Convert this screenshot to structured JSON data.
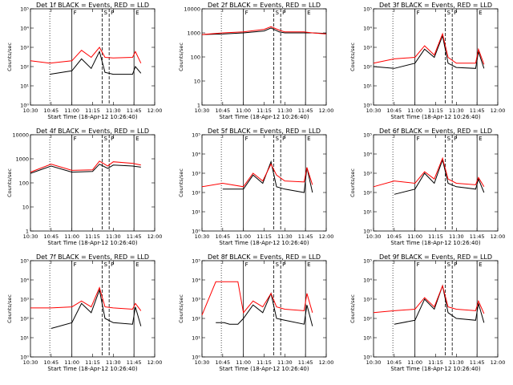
{
  "figure": {
    "colors": {
      "events": "#000000",
      "lld": "#ff0000",
      "background": "#ffffff"
    },
    "x_tick_labels": [
      "10:30",
      "10:45",
      "11:00",
      "11:15",
      "11:30",
      "11:45",
      "12:00"
    ],
    "xlabel": "Start Time (18-Apr-12 10:26:40)",
    "ylabel": "Counts/sec",
    "markers": [
      {
        "label": "F",
        "type": "solid",
        "x": "11:00"
      },
      {
        "label": "S",
        "type": "dashed",
        "x": "11:22"
      },
      {
        "label": "P",
        "type": "dashed",
        "x": "11:27"
      },
      {
        "label": "E",
        "type": "solid",
        "x": "11:45"
      }
    ],
    "grid": false
  },
  "chart_data": [
    {
      "type": "line",
      "title": "Det 1f  BLACK = Events, RED = LLD",
      "x": [
        "10:30",
        "10:44",
        "11:00",
        "11:07",
        "11:14",
        "11:20",
        "11:24",
        "11:30",
        "11:44",
        "11:46",
        "11:50"
      ],
      "series": [
        {
          "name": "Events",
          "color": "black",
          "values": [
            null,
            40,
            60,
            250,
            80,
            600,
            50,
            40,
            40,
            100,
            45
          ]
        },
        {
          "name": "LLD",
          "color": "red",
          "values": [
            200,
            150,
            200,
            700,
            300,
            1000,
            300,
            280,
            300,
            600,
            150
          ]
        }
      ],
      "ylim": [
        1,
        100000
      ],
      "yscale": "log",
      "ytick_labels": [
        "10⁰",
        "10¹",
        "10²",
        "10³",
        "10⁴",
        "10⁵"
      ]
    },
    {
      "type": "line",
      "title": "Det 2f  BLACK = Events, RED = LLD",
      "x": [
        "10:30",
        "10:45",
        "11:00",
        "11:15",
        "11:20",
        "11:26",
        "11:30",
        "11:44",
        "11:50",
        "12:00"
      ],
      "series": [
        {
          "name": "Events",
          "color": "black",
          "values": [
            850,
            900,
            1000,
            1200,
            1600,
            1100,
            1000,
            1000,
            1000,
            950
          ]
        },
        {
          "name": "LLD",
          "color": "red",
          "values": [
            850,
            1000,
            1100,
            1400,
            1800,
            1300,
            1100,
            1100,
            1000,
            900
          ]
        }
      ],
      "ylim": [
        1,
        10000
      ],
      "yscale": "log",
      "ytick_labels": [
        "1",
        "10",
        "100",
        "1000",
        "10000"
      ]
    },
    {
      "type": "line",
      "title": "Det 3f  BLACK = Events, RED = LLD",
      "x": [
        "10:30",
        "10:45",
        "11:00",
        "11:07",
        "11:14",
        "11:20",
        "11:24",
        "11:30",
        "11:44",
        "11:46",
        "11:50"
      ],
      "series": [
        {
          "name": "Events",
          "color": "black",
          "values": [
            100,
            80,
            150,
            800,
            300,
            4000,
            150,
            90,
            80,
            600,
            80
          ]
        },
        {
          "name": "LLD",
          "color": "red",
          "values": [
            150,
            250,
            300,
            1200,
            400,
            5000,
            300,
            150,
            150,
            800,
            130
          ]
        }
      ],
      "ylim": [
        1,
        100000
      ],
      "yscale": "log",
      "ytick_labels": [
        "10⁰",
        "10¹",
        "10²",
        "10³",
        "10⁴",
        "10⁵"
      ]
    },
    {
      "type": "line",
      "title": "Det 4f  BLACK = Events, RED = LLD",
      "x": [
        "10:30",
        "10:45",
        "11:00",
        "11:15",
        "11:20",
        "11:26",
        "11:30",
        "11:44",
        "11:50"
      ],
      "series": [
        {
          "name": "Events",
          "color": "black",
          "values": [
            250,
            500,
            280,
            300,
            600,
            400,
            550,
            500,
            450
          ]
        },
        {
          "name": "LLD",
          "color": "red",
          "values": [
            280,
            600,
            330,
            350,
            800,
            500,
            750,
            650,
            550
          ]
        }
      ],
      "ylim": [
        1,
        10000
      ],
      "yscale": "log",
      "ytick_labels": [
        "1",
        "10",
        "100",
        "1000",
        "10000"
      ]
    },
    {
      "type": "line",
      "title": "Det 5f  BLACK = Events, RED = LLD",
      "x": [
        "10:30",
        "10:45",
        "11:00",
        "11:07",
        "11:14",
        "11:20",
        "11:24",
        "11:30",
        "11:44",
        "11:46",
        "11:50"
      ],
      "series": [
        {
          "name": "Events",
          "color": "black",
          "values": [
            null,
            150,
            150,
            800,
            300,
            4000,
            200,
            150,
            100,
            2000,
            100
          ]
        },
        {
          "name": "LLD",
          "color": "red",
          "values": [
            200,
            300,
            200,
            1000,
            400,
            3000,
            800,
            400,
            350,
            2000,
            250
          ]
        }
      ],
      "ylim": [
        1,
        100000
      ],
      "yscale": "log",
      "ytick_labels": [
        "10⁰",
        "10¹",
        "10²",
        "10³",
        "10⁴",
        "10⁵"
      ]
    },
    {
      "type": "line",
      "title": "Det 6f  BLACK = Events, RED = LLD",
      "x": [
        "10:30",
        "10:45",
        "11:00",
        "11:07",
        "11:14",
        "11:20",
        "11:24",
        "11:30",
        "11:44",
        "11:46",
        "11:50"
      ],
      "series": [
        {
          "name": "Events",
          "color": "black",
          "values": [
            null,
            80,
            150,
            1000,
            300,
            5000,
            300,
            200,
            150,
            500,
            100
          ]
        },
        {
          "name": "LLD",
          "color": "red",
          "values": [
            200,
            400,
            300,
            1200,
            500,
            6000,
            500,
            300,
            250,
            600,
            200
          ]
        }
      ],
      "ylim": [
        1,
        100000
      ],
      "yscale": "log",
      "ytick_labels": [
        "10⁰",
        "10¹",
        "10²",
        "10³",
        "10⁴",
        "10⁵"
      ]
    },
    {
      "type": "line",
      "title": "Det 7f  BLACK = Events, RED = LLD",
      "x": [
        "10:30",
        "10:45",
        "11:00",
        "11:07",
        "11:14",
        "11:20",
        "11:24",
        "11:30",
        "11:44",
        "11:46",
        "11:50"
      ],
      "series": [
        {
          "name": "Events",
          "color": "black",
          "values": [
            null,
            30,
            60,
            600,
            200,
            3000,
            100,
            60,
            50,
            400,
            40
          ]
        },
        {
          "name": "LLD",
          "color": "red",
          "values": [
            350,
            350,
            400,
            800,
            400,
            4000,
            400,
            350,
            300,
            600,
            250
          ]
        }
      ],
      "ylim": [
        1,
        100000
      ],
      "yscale": "log",
      "ytick_labels": [
        "10⁰",
        "10¹",
        "10²",
        "10³",
        "10⁴",
        "10⁵"
      ]
    },
    {
      "type": "line",
      "title": "Det 8f  BLACK = Events, RED = LLD",
      "x": [
        "10:30",
        "10:40",
        "10:46",
        "10:50",
        "10:56",
        "11:00",
        "11:07",
        "11:14",
        "11:20",
        "11:24",
        "11:30",
        "11:44",
        "11:46",
        "11:50"
      ],
      "series": [
        {
          "name": "Events",
          "color": "black",
          "values": [
            null,
            60,
            60,
            50,
            50,
            100,
            500,
            200,
            2000,
            100,
            80,
            50,
            500,
            40
          ]
        },
        {
          "name": "LLD",
          "color": "red",
          "values": [
            150,
            8000,
            8000,
            8000,
            8000,
            200,
            800,
            400,
            2000,
            400,
            300,
            250,
            2000,
            200
          ]
        }
      ],
      "ylim": [
        1,
        100000
      ],
      "yscale": "log",
      "ytick_labels": [
        "10⁰",
        "10¹",
        "10²",
        "10³",
        "10⁴",
        "10⁵"
      ]
    },
    {
      "type": "line",
      "title": "Det 9f  BLACK = Events, RED = LLD",
      "x": [
        "10:30",
        "10:45",
        "11:00",
        "11:07",
        "11:14",
        "11:20",
        "11:24",
        "11:30",
        "11:44",
        "11:46",
        "11:50"
      ],
      "series": [
        {
          "name": "Events",
          "color": "black",
          "values": [
            null,
            50,
            80,
            1000,
            300,
            5000,
            200,
            100,
            80,
            600,
            60
          ]
        },
        {
          "name": "LLD",
          "color": "red",
          "values": [
            200,
            250,
            300,
            1200,
            400,
            5000,
            400,
            300,
            250,
            800,
            180
          ]
        }
      ],
      "ylim": [
        1,
        100000
      ],
      "yscale": "log",
      "ytick_labels": [
        "10⁰",
        "10¹",
        "10²",
        "10³",
        "10⁴",
        "10⁵"
      ]
    }
  ]
}
